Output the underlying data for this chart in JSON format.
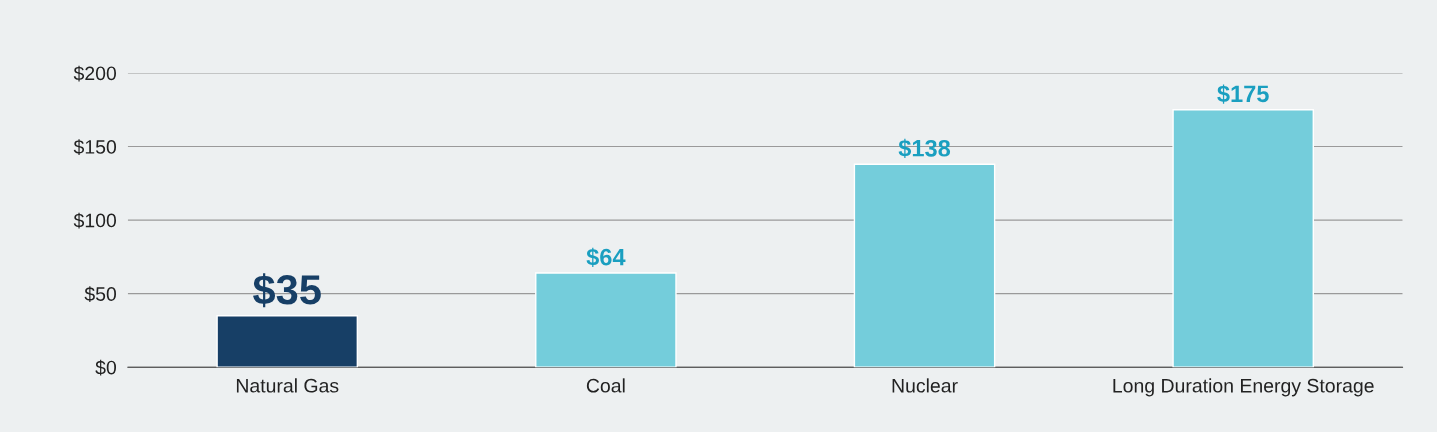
{
  "chart_data": {
    "type": "bar",
    "categories": [
      "Natural Gas",
      "Coal",
      "Nuclear",
      "Long Duration Energy Storage"
    ],
    "values": [
      35,
      64,
      138,
      175
    ],
    "colors": [
      "#173f66",
      "#74cddb",
      "#74cddb",
      "#74cddb"
    ],
    "value_labels": [
      "$35",
      "$64",
      "$138",
      "$175"
    ],
    "ylim": [
      0,
      200
    ],
    "yticks": [
      {
        "value": 0,
        "label": "$0"
      },
      {
        "value": 50,
        "label": "$50"
      },
      {
        "value": 100,
        "label": "$100"
      },
      {
        "value": 150,
        "label": "$150"
      },
      {
        "value": 200,
        "label": "$200"
      }
    ],
    "grid": "y",
    "legend": false
  }
}
